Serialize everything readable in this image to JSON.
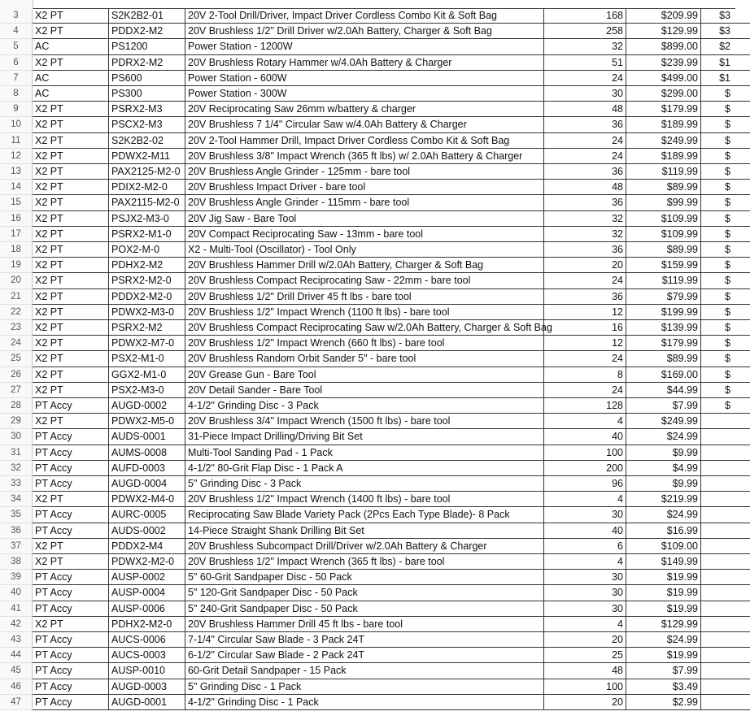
{
  "sheet": {
    "rows": [
      [
        "3",
        "X2 PT",
        "S2K2B2-01",
        "20V 2-Tool Drill/Driver, Impact Driver Cordless Combo Kit & Soft Bag",
        "168",
        "$209.99",
        "$3"
      ],
      [
        "4",
        "X2 PT",
        "PDDX2-M2",
        "20V Brushless 1/2\" Drill Driver w/2.0Ah Battery, Charger & Soft Bag",
        "258",
        "$129.99",
        "$3"
      ],
      [
        "5",
        "AC",
        "PS1200",
        "Power Station - 1200W",
        "32",
        "$899.00",
        "$2"
      ],
      [
        "6",
        "X2 PT",
        "PDRX2-M2",
        "20V Brushless Rotary Hammer w/4.0Ah Battery & Charger",
        "51",
        "$239.99",
        "$1"
      ],
      [
        "7",
        "AC",
        "PS600",
        "Power Station - 600W",
        "24",
        "$499.00",
        "$1"
      ],
      [
        "8",
        "AC",
        "PS300",
        "Power Station - 300W",
        "30",
        "$299.00",
        "$"
      ],
      [
        "9",
        "X2 PT",
        "PSRX2-M3",
        "20V Reciprocating Saw 26mm w/battery & charger",
        "48",
        "$179.99",
        "$"
      ],
      [
        "10",
        "X2 PT",
        "PSCX2-M3",
        "20V Brushless 7 1/4\" Circular Saw w/4.0Ah Battery & Charger",
        "36",
        "$189.99",
        "$"
      ],
      [
        "11",
        "X2 PT",
        "S2K2B2-02",
        "20V 2-Tool Hammer Drill, Impact Driver Cordless Combo Kit & Soft Bag",
        "24",
        "$249.99",
        "$"
      ],
      [
        "12",
        "X2 PT",
        "PDWX2-M11",
        "20V Brushless 3/8\" Impact Wrench (365 ft lbs) w/ 2.0Ah Battery & Charger",
        "24",
        "$189.99",
        "$"
      ],
      [
        "13",
        "X2 PT",
        "PAX2125-M2-0",
        "20V Brushless Angle Grinder - 125mm - bare tool",
        "36",
        "$119.99",
        "$"
      ],
      [
        "14",
        "X2 PT",
        "PDIX2-M2-0",
        "20V Brushless Impact Driver - bare tool",
        "48",
        "$89.99",
        "$"
      ],
      [
        "15",
        "X2 PT",
        "PAX2115-M2-0",
        "20V Brushless Angle Grinder - 115mm - bare tool",
        "36",
        "$99.99",
        "$"
      ],
      [
        "16",
        "X2 PT",
        "PSJX2-M3-0",
        "20V Jig Saw - Bare Tool",
        "32",
        "$109.99",
        "$"
      ],
      [
        "17",
        "X2 PT",
        "PSRX2-M1-0",
        "20V Compact Reciprocating Saw - 13mm - bare tool",
        "32",
        "$109.99",
        "$"
      ],
      [
        "18",
        "X2 PT",
        "POX2-M-0",
        "X2 - Multi-Tool (Oscillator) - Tool Only",
        "36",
        "$89.99",
        "$"
      ],
      [
        "19",
        "X2 PT",
        "PDHX2-M2",
        "20V Brushless Hammer Drill w/2.0Ah Battery, Charger & Soft Bag",
        "20",
        "$159.99",
        "$"
      ],
      [
        "20",
        "X2 PT",
        "PSRX2-M2-0",
        "20V Brushless Compact Reciprocating Saw - 22mm - bare tool",
        "24",
        "$119.99",
        "$"
      ],
      [
        "21",
        "X2 PT",
        "PDDX2-M2-0",
        "20V Brushless 1/2\" Drill Driver 45 ft lbs - bare tool",
        "36",
        "$79.99",
        "$"
      ],
      [
        "22",
        "X2 PT",
        "PDWX2-M3-0",
        "20V Brushless 1/2\" Impact Wrench (1100 ft lbs) - bare tool",
        "12",
        "$199.99",
        "$"
      ],
      [
        "23",
        "X2 PT",
        "PSRX2-M2",
        "20V Brushless Compact Reciprocating Saw w/2.0Ah Battery, Charger & Soft Bag",
        "16",
        "$139.99",
        "$"
      ],
      [
        "24",
        "X2 PT",
        "PDWX2-M7-0",
        "20V Brushless 1/2\" Impact Wrench (660 ft lbs) - bare tool",
        "12",
        "$179.99",
        "$"
      ],
      [
        "25",
        "X2 PT",
        "PSX2-M1-0",
        "20V Brushless Random Orbit Sander 5\" - bare tool",
        "24",
        "$89.99",
        "$"
      ],
      [
        "26",
        "X2 PT",
        "GGX2-M1-0",
        "20V Grease Gun - Bare Tool",
        "8",
        "$169.00",
        "$"
      ],
      [
        "27",
        "X2 PT",
        "PSX2-M3-0",
        "20V Detail Sander - Bare Tool",
        "24",
        "$44.99",
        "$"
      ],
      [
        "28",
        "PT Accy",
        "AUGD-0002",
        "4-1/2\" Grinding Disc - 3 Pack",
        "128",
        "$7.99",
        "$"
      ],
      [
        "29",
        "X2 PT",
        "PDWX2-M5-0",
        "20V Brushless 3/4\" Impact Wrench (1500 ft lbs) - bare tool",
        "4",
        "$249.99",
        ""
      ],
      [
        "30",
        "PT Accy",
        "AUDS-0001",
        "31-Piece Impact Drilling/Driving Bit Set",
        "40",
        "$24.99",
        ""
      ],
      [
        "31",
        "PT Accy",
        "AUMS-0008",
        "Multi-Tool Sanding Pad - 1 Pack",
        "100",
        "$9.99",
        ""
      ],
      [
        "32",
        "PT Accy",
        "AUFD-0003",
        "4-1/2\" 80-Grit Flap Disc - 1 Pack A",
        "200",
        "$4.99",
        ""
      ],
      [
        "33",
        "PT Accy",
        "AUGD-0004",
        "5\" Grinding Disc - 3 Pack",
        "96",
        "$9.99",
        ""
      ],
      [
        "34",
        "X2 PT",
        "PDWX2-M4-0",
        "20V Brushless 1/2\" Impact Wrench (1400 ft lbs) - bare tool",
        "4",
        "$219.99",
        ""
      ],
      [
        "35",
        "PT Accy",
        "AURC-0005",
        "Reciprocating Saw Blade Variety Pack (2Pcs Each Type Blade)- 8 Pack",
        "30",
        "$24.99",
        ""
      ],
      [
        "36",
        "PT Accy",
        "AUDS-0002",
        "14-Piece Straight Shank Drilling Bit Set",
        "40",
        "$16.99",
        ""
      ],
      [
        "37",
        "X2 PT",
        "PDDX2-M4",
        "20V Brushless Subcompact Drill/Driver w/2.0Ah Battery & Charger",
        "6",
        "$109.00",
        ""
      ],
      [
        "38",
        "X2 PT",
        "PDWX2-M2-0",
        "20V Brushless 1/2\" Impact Wrench (365 ft lbs) - bare tool",
        "4",
        "$149.99",
        ""
      ],
      [
        "39",
        "PT Accy",
        "AUSP-0002",
        "5\" 60-Grit Sandpaper Disc - 50 Pack",
        "30",
        "$19.99",
        ""
      ],
      [
        "40",
        "PT Accy",
        "AUSP-0004",
        "5\" 120-Grit Sandpaper Disc - 50 Pack",
        "30",
        "$19.99",
        ""
      ],
      [
        "41",
        "PT Accy",
        "AUSP-0006",
        "5\" 240-Grit Sandpaper Disc - 50 Pack",
        "30",
        "$19.99",
        ""
      ],
      [
        "42",
        "X2 PT",
        "PDHX2-M2-0",
        "20V Brushless Hammer Drill 45 ft lbs - bare tool",
        "4",
        "$129.99",
        ""
      ],
      [
        "43",
        "PT Accy",
        "AUCS-0006",
        "7-1/4\" Circular Saw Blade - 3 Pack 24T",
        "20",
        "$24.99",
        ""
      ],
      [
        "44",
        "PT Accy",
        "AUCS-0003",
        "6-1/2\" Circular Saw Blade - 2 Pack 24T",
        "25",
        "$19.99",
        ""
      ],
      [
        "45",
        "PT Accy",
        "AUSP-0010",
        "60-Grit Detail Sandpaper - 15 Pack",
        "48",
        "$7.99",
        ""
      ],
      [
        "46",
        "PT Accy",
        "AUGD-0003",
        "5\" Grinding Disc - 1 Pack",
        "100",
        "$3.49",
        ""
      ],
      [
        "47",
        "PT Accy",
        "AUGD-0001",
        "4-1/2\" Grinding Disc - 1 Pack",
        "20",
        "$2.99",
        ""
      ]
    ]
  }
}
